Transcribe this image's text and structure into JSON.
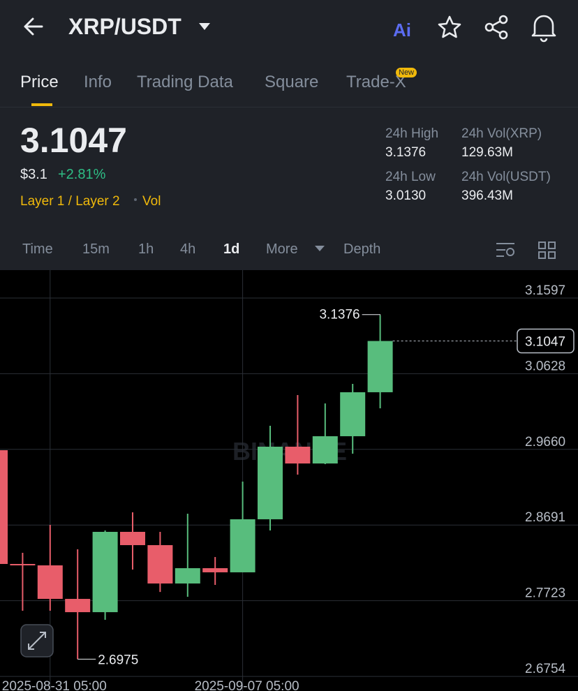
{
  "header": {
    "pair": "XRP/USDT",
    "ai": "Ai"
  },
  "tabs": [
    "Price",
    "Info",
    "Trading Data",
    "Square",
    "Trade-X"
  ],
  "tab_badge": "New",
  "active_tab": 0,
  "summary": {
    "price": "3.1047",
    "price_usd": "$3.1",
    "change": "+2.81%",
    "tags": [
      "Layer 1 / Layer 2",
      "Vol"
    ]
  },
  "stats": [
    {
      "label": "24h High",
      "value": "3.1376"
    },
    {
      "label": "24h Vol(XRP)",
      "value": "129.63M"
    },
    {
      "label": "24h Low",
      "value": "3.0130"
    },
    {
      "label": "24h Vol(USDT)",
      "value": "396.43M"
    }
  ],
  "intervals": [
    "Time",
    "15m",
    "1h",
    "4h",
    "1d",
    "More",
    "Depth"
  ],
  "active_interval": 4,
  "chart_data": {
    "type": "candlestick",
    "watermark": "BINANCE",
    "categories": [
      null,
      null,
      "2025-08-31 05:00",
      null,
      null,
      null,
      null,
      null,
      null,
      "2025-09-07 05:00",
      null,
      null,
      null,
      null,
      null
    ],
    "open": [
      2.9649,
      2.8193,
      2.8175,
      2.7746,
      2.7576,
      2.8604,
      2.8434,
      2.7943,
      2.8139,
      2.8086,
      2.8765,
      2.9694,
      2.9479,
      2.9828,
      3.0391
    ],
    "high": [
      2.9649,
      2.8336,
      2.8693,
      2.838,
      2.8622,
      2.8854,
      2.8604,
      2.8836,
      2.8282,
      2.9247,
      2.9962,
      3.0355,
      3.0248,
      3.0498,
      3.1376
    ],
    "low": [
      2.8193,
      2.7594,
      2.7594,
      2.6975,
      2.7478,
      2.8121,
      2.7835,
      2.7773,
      2.7925,
      2.8086,
      2.8622,
      2.9336,
      2.947,
      2.9604,
      3.0185
    ],
    "close": [
      2.8193,
      2.8184,
      2.7746,
      2.7576,
      2.8604,
      2.8434,
      2.7943,
      2.8139,
      2.8086,
      2.8765,
      2.9694,
      2.9479,
      2.9828,
      3.0391,
      3.1047
    ],
    "up_color": "#58bd7d",
    "down_color": "#e85d6a",
    "ylim": [
      2.6567,
      3.1954
    ],
    "yticks": [
      2.6754,
      2.7723,
      2.8691,
      {
        "value": 2.966,
        "label": "2.9660"
      },
      3.0628,
      3.1597
    ],
    "grid": true
  }
}
